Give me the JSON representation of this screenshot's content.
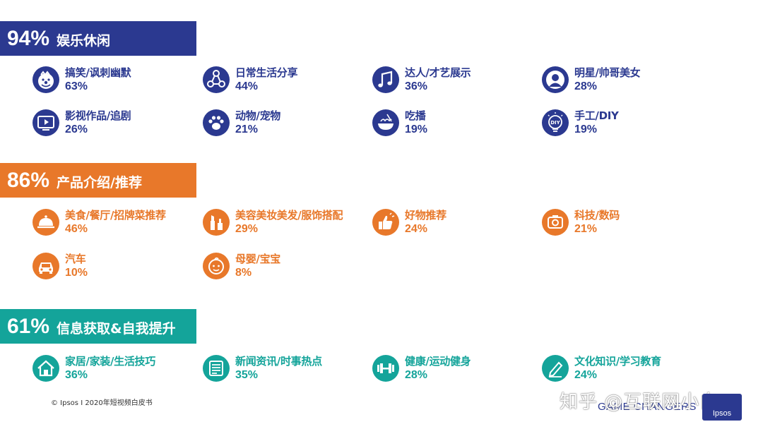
{
  "colors": {
    "blue": "#2b3990",
    "orange": "#e8782a",
    "teal": "#14a49a"
  },
  "sections": [
    {
      "percent": "94%",
      "title": "娱乐休闲",
      "items": [
        {
          "label": "搞笑/讽刺幽默",
          "value": "63%",
          "icon": "clown-face-icon"
        },
        {
          "label": "日常生活分享",
          "value": "44%",
          "icon": "share-network-icon"
        },
        {
          "label": "达人/才艺展示",
          "value": "36%",
          "icon": "music-note-icon"
        },
        {
          "label": "明星/帅哥美女",
          "value": "28%",
          "icon": "person-icon"
        },
        {
          "label": "影视作品/追剧",
          "value": "26%",
          "icon": "tv-play-icon"
        },
        {
          "label": "动物/宠物",
          "value": "21%",
          "icon": "paw-icon"
        },
        {
          "label": "吃播",
          "value": "19%",
          "icon": "noodle-bowl-icon"
        },
        {
          "label": "手工/DIY",
          "value": "19%",
          "icon": "diy-bulb-icon"
        }
      ]
    },
    {
      "percent": "86%",
      "title": "产品介绍/推荐",
      "items": [
        {
          "label": "美食/餐厅/招牌菜推荐",
          "value": "46%",
          "icon": "food-cloche-icon"
        },
        {
          "label": "美容美妆美发/服饰搭配",
          "value": "29%",
          "icon": "makeup-icon"
        },
        {
          "label": "好物推荐",
          "value": "24%",
          "icon": "thumbs-up-icon"
        },
        {
          "label": "科技/数码",
          "value": "21%",
          "icon": "camera-icon"
        },
        {
          "label": "汽车",
          "value": "10%",
          "icon": "car-icon"
        },
        {
          "label": "母婴/宝宝",
          "value": "8%",
          "icon": "baby-face-icon"
        }
      ]
    },
    {
      "percent": "61%",
      "title": "信息获取&自我提升",
      "items": [
        {
          "label": "家居/家装/生活技巧",
          "value": "36%",
          "icon": "house-icon"
        },
        {
          "label": "新闻资讯/时事热点",
          "value": "35%",
          "icon": "newspaper-icon"
        },
        {
          "label": "健康/运动健身",
          "value": "28%",
          "icon": "dumbbell-icon"
        },
        {
          "label": "文化知识/学习教育",
          "value": "24%",
          "icon": "pencil-icon"
        }
      ]
    }
  ],
  "footer": {
    "note": "© Ipsos I 2020年短视频白皮书",
    "watermark": "知乎 @互联网小白",
    "tagline": "GAME CHANGERS",
    "logo": "Ipsos"
  }
}
